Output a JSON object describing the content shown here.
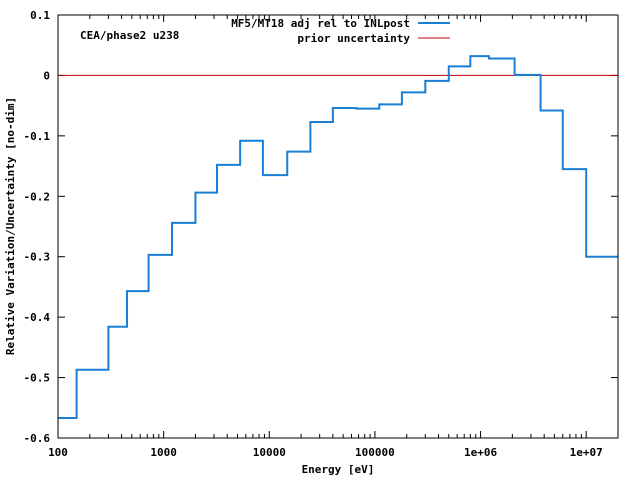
{
  "chart_data": {
    "type": "line",
    "step": true,
    "x_scale": "log",
    "annotation": "CEA/phase2 u238",
    "xlabel": "Energy [eV]",
    "ylabel": "Relative Variation/Uncertainty [no-dim]",
    "xlim": [
      100,
      20000000
    ],
    "ylim": [
      -0.6,
      0.1
    ],
    "x_ticks": [
      {
        "value": 100,
        "label": "100"
      },
      {
        "value": 1000,
        "label": "1000"
      },
      {
        "value": 10000,
        "label": "10000"
      },
      {
        "value": 100000,
        "label": "100000"
      },
      {
        "value": 1000000,
        "label": "1e+06"
      },
      {
        "value": 10000000,
        "label": "1e+07"
      }
    ],
    "y_ticks": [
      {
        "value": 0.1,
        "label": "0.1"
      },
      {
        "value": 0,
        "label": "0"
      },
      {
        "value": -0.1,
        "label": "-0.1"
      },
      {
        "value": -0.2,
        "label": "-0.2"
      },
      {
        "value": -0.3,
        "label": "-0.3"
      },
      {
        "value": -0.4,
        "label": "-0.4"
      },
      {
        "value": -0.5,
        "label": "-0.5"
      },
      {
        "value": -0.6,
        "label": "-0.6"
      }
    ],
    "legend_position": "top-right",
    "series": [
      {
        "name": "MF5/MT18 adj rel to INLpost",
        "color": "#1a7fd4",
        "boundaries": [
          100,
          150,
          300,
          450,
          720,
          1200,
          2000,
          3200,
          5300,
          8700,
          14800,
          24500,
          40000,
          67000,
          110000,
          180000,
          300000,
          500000,
          800000,
          1200000,
          2100000,
          3700000,
          6000000,
          10000000,
          20000000
        ],
        "values": [
          -0.567,
          -0.487,
          -0.416,
          -0.357,
          -0.297,
          -0.244,
          -0.194,
          -0.148,
          -0.108,
          -0.165,
          -0.126,
          -0.077,
          -0.054,
          -0.055,
          -0.048,
          -0.028,
          -0.009,
          0.015,
          0.032,
          0.028,
          0.001,
          -0.058,
          -0.155,
          -0.3
        ]
      },
      {
        "name": "prior uncertainty",
        "color": "#c00000",
        "boundaries": [
          100,
          20000000
        ],
        "values": [
          0
        ]
      }
    ]
  }
}
